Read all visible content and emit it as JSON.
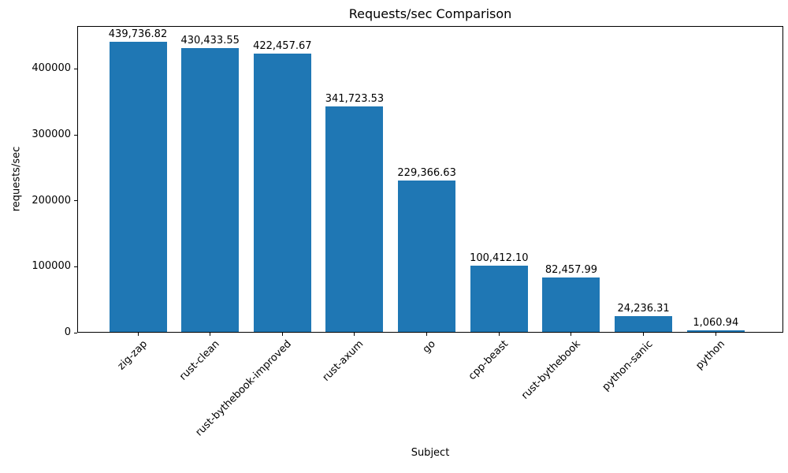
{
  "chart_data": {
    "type": "bar",
    "title": "Requests/sec Comparison",
    "xlabel": "Subject",
    "ylabel": "requests/sec",
    "categories": [
      "zig-zap",
      "rust-clean",
      "rust-bythebook-improved",
      "rust-axum",
      "go",
      "cpp-beast",
      "rust-bythebook",
      "python-sanic",
      "python"
    ],
    "values": [
      439736.82,
      430433.55,
      422457.67,
      341723.53,
      229366.63,
      100412.1,
      82457.99,
      24236.31,
      1060.94
    ],
    "bar_labels": [
      "439,736.82",
      "430,433.55",
      "422,457.67",
      "341,723.53",
      "229,366.63",
      "100,412.10",
      "82,457.99",
      "24,236.31",
      "1,060.94"
    ],
    "y_ticks": [
      0,
      100000,
      200000,
      300000,
      400000
    ],
    "y_tick_labels": [
      "0",
      "100000",
      "200000",
      "300000",
      "400000"
    ],
    "ylim": [
      0,
      465000
    ],
    "grid": false,
    "legend_position": "none",
    "bar_color": "#1f77b4",
    "text_color": "#000000",
    "background_color": "#ffffff",
    "x_tick_rotation": 45
  }
}
